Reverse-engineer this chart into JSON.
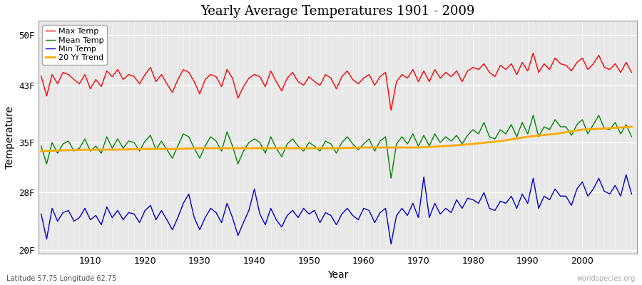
{
  "title": "Yearly Average Temperatures 1901 - 2009",
  "xlabel": "Year",
  "ylabel": "Temperature",
  "subtitle_lat": "Latitude 57.75 Longitude 62.75",
  "watermark": "worldspecies.org",
  "start_year": 1901,
  "end_year": 2009,
  "yticks": [
    20,
    28,
    35,
    43,
    50
  ],
  "ytick_labels": [
    "20F",
    "28F",
    "35F",
    "43F",
    "50F"
  ],
  "ylim": [
    19.5,
    52
  ],
  "xlim": [
    1900.5,
    2010
  ],
  "bg_color": "#e8e8e8",
  "fig_bg_color": "#ffffff",
  "max_color": "#ff0000",
  "mean_color": "#008800",
  "min_color": "#0000cc",
  "trend_color": "#ffaa00",
  "trend_linewidth": 2.0,
  "line_linewidth": 1.0,
  "legend_labels": [
    "Max Temp",
    "Mean Temp",
    "Min Temp",
    "20 Yr Trend"
  ],
  "max_temps": [
    44.3,
    41.5,
    44.5,
    43.2,
    44.8,
    44.5,
    43.8,
    43.2,
    44.5,
    42.5,
    43.8,
    42.8,
    45.0,
    44.2,
    45.2,
    43.8,
    44.5,
    44.2,
    43.2,
    44.5,
    45.5,
    43.5,
    44.5,
    43.2,
    42.0,
    43.8,
    45.2,
    44.8,
    43.5,
    41.8,
    43.8,
    44.5,
    44.2,
    42.8,
    45.2,
    44.0,
    41.2,
    42.8,
    44.0,
    44.5,
    44.2,
    42.8,
    45.0,
    43.5,
    42.2,
    44.0,
    44.8,
    43.5,
    43.0,
    44.2,
    43.5,
    43.0,
    44.5,
    44.0,
    42.5,
    44.2,
    45.0,
    43.8,
    43.2,
    44.0,
    44.5,
    43.0,
    44.2,
    44.8,
    39.5,
    43.5,
    44.5,
    44.0,
    45.2,
    43.5,
    45.0,
    43.5,
    45.2,
    44.0,
    44.8,
    44.2,
    45.0,
    43.5,
    45.0,
    45.5,
    45.2,
    46.0,
    44.8,
    44.2,
    45.8,
    45.2,
    46.0,
    44.5,
    46.2,
    45.0,
    47.5,
    44.8,
    46.0,
    45.2,
    46.8,
    46.0,
    45.8,
    45.0,
    46.2,
    46.8,
    45.2,
    46.0,
    47.2,
    45.5,
    45.2,
    46.0,
    44.8,
    46.2,
    44.8
  ],
  "mean_temps": [
    34.5,
    32.0,
    35.0,
    33.5,
    34.8,
    35.2,
    33.8,
    34.2,
    35.5,
    33.8,
    34.5,
    33.5,
    35.8,
    34.2,
    35.5,
    34.2,
    35.2,
    35.0,
    33.8,
    35.2,
    36.0,
    34.0,
    35.2,
    34.0,
    32.8,
    34.5,
    36.2,
    35.8,
    34.2,
    32.8,
    34.5,
    35.8,
    35.2,
    33.8,
    36.5,
    34.5,
    32.0,
    33.8,
    35.0,
    35.5,
    35.0,
    33.5,
    35.8,
    34.2,
    33.0,
    34.8,
    35.5,
    34.5,
    33.8,
    35.0,
    34.5,
    33.8,
    35.2,
    34.8,
    33.5,
    35.0,
    35.8,
    34.8,
    34.0,
    34.8,
    35.5,
    33.8,
    35.2,
    35.8,
    30.0,
    34.8,
    35.8,
    34.8,
    36.2,
    34.5,
    36.0,
    34.5,
    36.2,
    35.0,
    35.8,
    35.2,
    36.0,
    34.8,
    36.0,
    36.8,
    36.2,
    37.8,
    35.8,
    35.5,
    36.8,
    36.2,
    37.5,
    35.8,
    37.8,
    36.2,
    38.8,
    35.8,
    37.2,
    36.8,
    38.2,
    37.2,
    37.2,
    36.0,
    37.5,
    38.2,
    36.2,
    37.5,
    38.8,
    37.0,
    36.8,
    37.8,
    36.2,
    37.5,
    35.8
  ],
  "min_temps": [
    25.0,
    21.5,
    25.8,
    24.0,
    25.2,
    25.5,
    24.0,
    24.5,
    25.8,
    24.2,
    24.8,
    23.5,
    26.0,
    24.5,
    25.5,
    24.2,
    25.2,
    25.0,
    23.8,
    25.5,
    26.2,
    24.2,
    25.5,
    24.2,
    22.8,
    24.5,
    26.5,
    27.8,
    24.5,
    22.8,
    24.5,
    25.8,
    25.2,
    23.8,
    26.5,
    24.5,
    22.0,
    23.8,
    25.5,
    28.5,
    25.0,
    23.5,
    25.8,
    24.2,
    23.2,
    24.8,
    25.5,
    24.5,
    25.8,
    25.0,
    25.5,
    23.8,
    25.2,
    24.8,
    23.5,
    25.0,
    25.8,
    24.8,
    24.2,
    25.8,
    25.5,
    23.8,
    25.2,
    25.8,
    20.8,
    24.8,
    25.8,
    24.8,
    26.5,
    24.5,
    30.2,
    24.5,
    26.5,
    25.0,
    25.8,
    25.2,
    27.0,
    25.8,
    27.2,
    27.0,
    26.5,
    28.0,
    25.8,
    25.5,
    26.8,
    26.5,
    27.5,
    25.8,
    27.8,
    26.5,
    30.0,
    25.8,
    27.5,
    27.0,
    28.5,
    27.5,
    27.5,
    26.2,
    28.5,
    29.5,
    27.5,
    28.5,
    30.0,
    28.2,
    27.8,
    29.0,
    27.5,
    30.5,
    27.8
  ],
  "trend_x": [
    1901,
    1905,
    1910,
    1915,
    1920,
    1925,
    1930,
    1935,
    1940,
    1945,
    1950,
    1955,
    1960,
    1965,
    1970,
    1975,
    1980,
    1985,
    1990,
    1995,
    2000,
    2005,
    2009
  ],
  "trend_y": [
    33.8,
    33.9,
    34.0,
    34.0,
    34.1,
    34.1,
    34.2,
    34.2,
    34.2,
    34.2,
    34.2,
    34.2,
    34.3,
    34.3,
    34.3,
    34.5,
    34.8,
    35.2,
    35.8,
    36.2,
    36.8,
    37.0,
    37.2
  ]
}
